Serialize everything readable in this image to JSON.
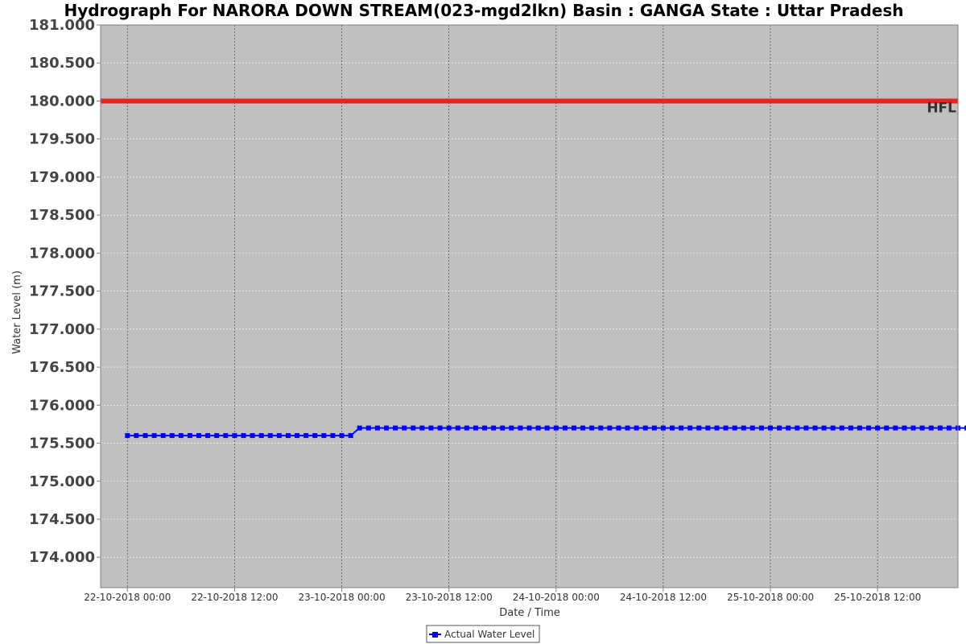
{
  "chart_data": {
    "type": "line",
    "title": "Hydrograph For NARORA DOWN STREAM(023-mgd2lkn) Basin : GANGA State : Uttar Pradesh",
    "xlabel": "Date / Time",
    "ylabel": "Water Level (m)",
    "ylim": [
      173.6,
      181.0
    ],
    "xlim": [
      "2018-10-21T21:00",
      "2018-10-25T21:00"
    ],
    "y_ticks": [
      "174.000",
      "174.500",
      "175.000",
      "175.500",
      "176.000",
      "176.500",
      "177.000",
      "177.500",
      "178.000",
      "178.500",
      "179.000",
      "179.500",
      "180.000",
      "180.500",
      "181.000"
    ],
    "x_ticks": [
      {
        "t": "2018-10-22T00:00",
        "label": "22-10-2018 00:00"
      },
      {
        "t": "2018-10-22T12:00",
        "label": "22-10-2018 12:00"
      },
      {
        "t": "2018-10-23T00:00",
        "label": "23-10-2018 00:00"
      },
      {
        "t": "2018-10-23T12:00",
        "label": "23-10-2018 12:00"
      },
      {
        "t": "2018-10-24T00:00",
        "label": "24-10-2018 00:00"
      },
      {
        "t": "2018-10-24T12:00",
        "label": "24-10-2018 12:00"
      },
      {
        "t": "2018-10-25T00:00",
        "label": "25-10-2018 00:00"
      },
      {
        "t": "2018-10-25T12:00",
        "label": "25-10-2018 12:00"
      }
    ],
    "grid": true,
    "legend_position": "bottom-center",
    "background_color": "#c0c0c0",
    "threshold_lines": [
      {
        "name": "HFL",
        "value": 180.0,
        "color": "#e8221f"
      }
    ],
    "series": [
      {
        "name": "Actual Water Level",
        "color": "#0000ff",
        "marker": "square",
        "interval_hours": 1,
        "segments": [
          {
            "from": "2018-10-22T00:00",
            "to": "2018-10-23T01:00",
            "value": 175.6
          },
          {
            "from": "2018-10-23T02:00",
            "to": "2018-10-25T22:00",
            "value": 175.7
          }
        ]
      }
    ]
  }
}
